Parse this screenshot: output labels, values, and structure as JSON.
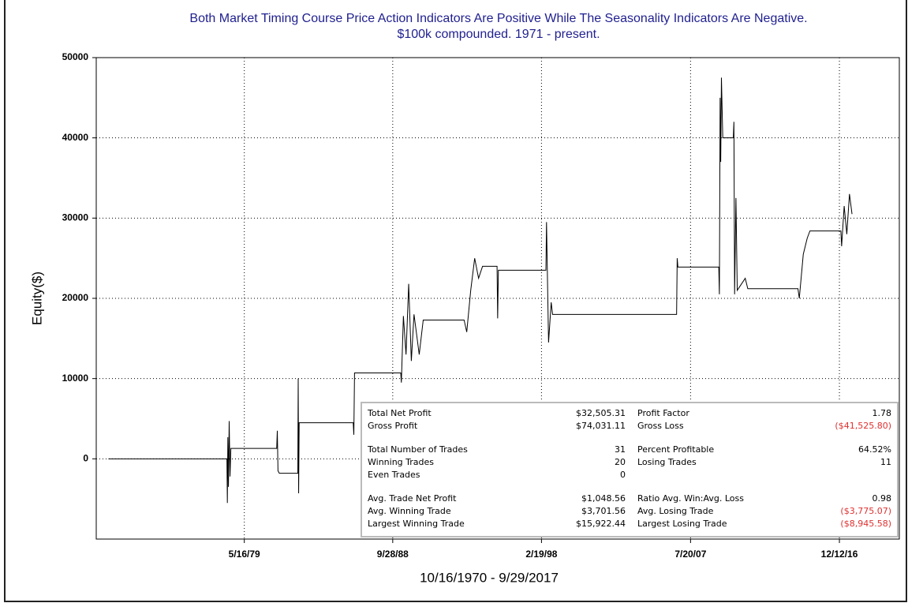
{
  "chart_data": {
    "type": "line",
    "title": "Both Market Timing Course Price Action Indicators Are Positive While The Seasonality Indicators Are Negative.",
    "subtitle": "$100k compounded. 1971 - present.",
    "y_label": "Equity($)",
    "x_label": "10/16/1970 - 9/29/2017",
    "color": "#000000",
    "grid": true,
    "ylim": [
      -10000,
      50000
    ],
    "yticks": [
      0,
      10000,
      20000,
      30000,
      40000,
      50000
    ],
    "xlim": [
      "1970-01-08",
      "2020-09-24"
    ],
    "xticks": [
      {
        "value": "1979-05-16",
        "label": "5/16/79"
      },
      {
        "value": "1988-09-28",
        "label": "9/28/88"
      },
      {
        "value": "1998-02-19",
        "label": "2/19/98"
      },
      {
        "value": "2007-07-20",
        "label": "7/20/07"
      },
      {
        "value": "2016-12-12",
        "label": "12/12/16"
      }
    ],
    "x": [
      "1970-10-16",
      "1978-04-10",
      "1978-04-20",
      "1978-05-01",
      "1978-05-15",
      "1978-06-01",
      "1978-06-20",
      "1978-07-10",
      "1981-06-01",
      "1981-06-15",
      "1981-07-01",
      "1981-08-01",
      "1982-10-01",
      "1982-10-10",
      "1982-10-20",
      "1982-11-01",
      "1986-04-01",
      "1986-04-15",
      "1986-05-01",
      "1989-04-01",
      "1989-04-15",
      "1989-06-01",
      "1989-08-01",
      "1989-10-01",
      "1989-12-01",
      "1990-02-01",
      "1990-06-01",
      "1990-09-01",
      "1993-04-01",
      "1993-06-01",
      "1993-09-01",
      "1993-12-01",
      "1994-03-01",
      "1994-06-01",
      "1995-05-01",
      "1995-05-15",
      "1995-06-01",
      "1998-06-01",
      "1998-06-15",
      "1998-08-01",
      "1998-10-01",
      "1998-11-01",
      "2006-09-01",
      "2006-09-15",
      "2006-10-01",
      "2009-05-01",
      "2009-05-15",
      "2009-06-01",
      "2009-06-15",
      "2009-07-01",
      "2009-08-01",
      "2010-04-01",
      "2010-04-15",
      "2010-05-01",
      "2010-06-01",
      "2010-07-01",
      "2011-01-01",
      "2011-03-01",
      "2014-05-01",
      "2014-06-01",
      "2014-09-01",
      "2014-12-01",
      "2015-02-01",
      "2017-01-15",
      "2017-02-01",
      "2017-04-01",
      "2017-06-01",
      "2017-08-01",
      "2017-09-29"
    ],
    "values": [
      0,
      0,
      -5500,
      2700,
      -3500,
      4700,
      -2200,
      1300,
      1300,
      3500,
      -1500,
      -1800,
      -1800,
      10000,
      -4300,
      4500,
      4500,
      3000,
      10700,
      10700,
      9500,
      17800,
      13000,
      21800,
      12200,
      18000,
      13000,
      17300,
      17300,
      15800,
      21000,
      25000,
      22500,
      24000,
      24000,
      17500,
      23500,
      23500,
      29500,
      14500,
      19500,
      18000,
      18000,
      25000,
      23900,
      23900,
      20500,
      45000,
      37000,
      47500,
      40000,
      40000,
      42000,
      20500,
      32500,
      21000,
      22500,
      21200,
      21200,
      20000,
      25500,
      27500,
      28400,
      28400,
      26500,
      31500,
      28000,
      33000,
      30500
    ],
    "stats": [
      [
        [
          "Total Net Profit",
          "$32,505.31",
          "Profit Factor",
          "1.78"
        ],
        [
          "Gross Profit",
          "$74,031.11",
          "Gross Loss",
          "($41,525.80)"
        ]
      ],
      [
        [
          "Total Number of Trades",
          "31",
          "Percent Profitable",
          "64.52%"
        ],
        [
          "Winning Trades",
          "20",
          "Losing Trades",
          "11"
        ],
        [
          "Even Trades",
          "0"
        ]
      ],
      [
        [
          "Avg. Trade Net Profit",
          "$1,048.56",
          "Ratio Avg. Win:Avg. Loss",
          "0.98"
        ],
        [
          "Avg. Winning Trade",
          "$3,701.56",
          "Avg. Losing Trade",
          "($3,775.07)"
        ],
        [
          "Largest Winning Trade",
          "$15,922.44",
          "Largest Losing Trade",
          "($8,945.58)"
        ]
      ]
    ]
  }
}
